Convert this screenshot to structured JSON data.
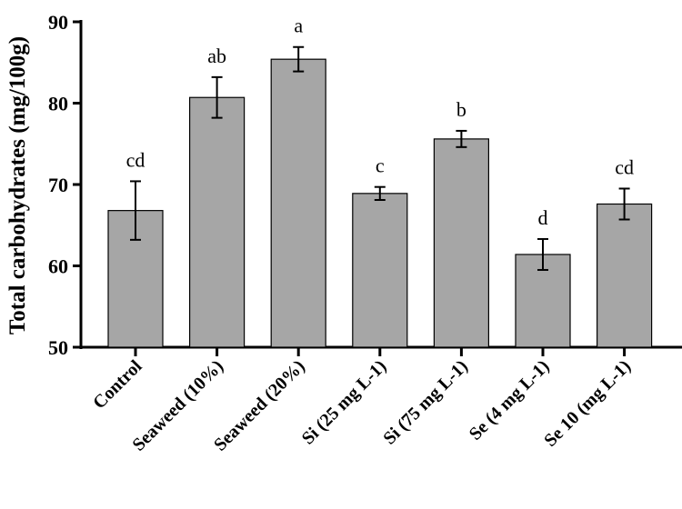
{
  "chart_data": {
    "type": "bar",
    "ylabel": "Total carbohydrates (mg/100g)",
    "xlabel": "",
    "ylim": [
      50,
      90
    ],
    "yticks": [
      50,
      60,
      70,
      80,
      90
    ],
    "categories": [
      "Control",
      "Seaweed (10%)",
      "Seaweed (20%)",
      "Si (25 mg L-1)",
      "Si (75 mg L-1)",
      "Se (4 mg L-1)",
      "Se 10 (mg L-1)"
    ],
    "values": [
      66.8,
      80.7,
      85.4,
      68.9,
      75.6,
      61.4,
      67.6
    ],
    "errors": [
      3.6,
      2.5,
      1.5,
      0.8,
      1.0,
      1.9,
      1.9
    ],
    "significance": [
      "cd",
      "ab",
      "a",
      "c",
      "b",
      "d",
      "cd"
    ],
    "bar_color": "#a6a6a6",
    "grid": false,
    "legend": "none"
  }
}
